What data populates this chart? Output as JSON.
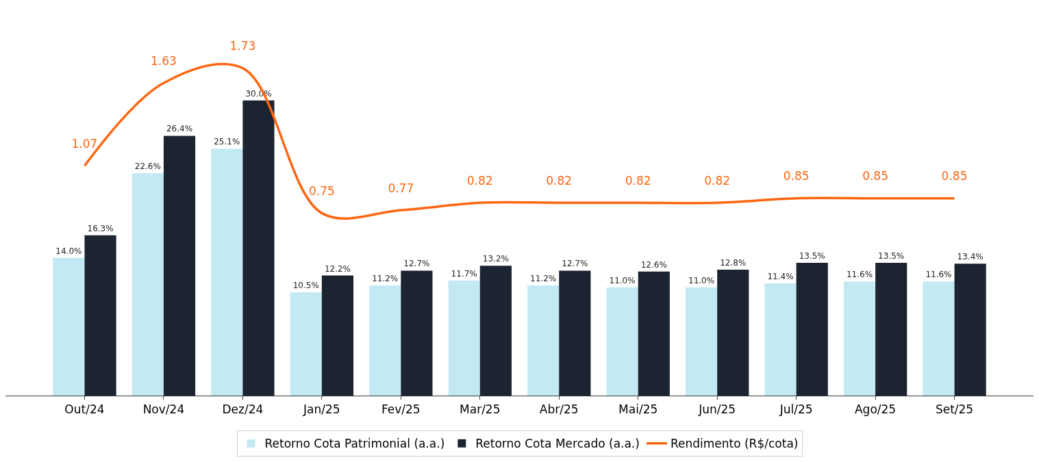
{
  "chart_data": {
    "type": "bar",
    "categories": [
      "Out/24",
      "Nov/24",
      "Dez/24",
      "Jan/25",
      "Fev/25",
      "Mar/25",
      "Abr/25",
      "Mai/25",
      "Jun/25",
      "Jul/25",
      "Ago/25",
      "Set/25"
    ],
    "series": [
      {
        "name": "Retorno Cota Patrimonial (a.a.)",
        "color": "#c3eaf4",
        "values": [
          14.0,
          22.6,
          25.1,
          10.5,
          11.2,
          11.7,
          11.2,
          11.0,
          11.0,
          11.4,
          11.6,
          11.6
        ],
        "value_labels": [
          "14.0%",
          "22.6%",
          "25.1%",
          "10.5%",
          "11.2%",
          "11.7%",
          "11.2%",
          "11.0%",
          "11.0%",
          "11.4%",
          "11.6%",
          "11.6%"
        ]
      },
      {
        "name": "Retorno Cota Mercado (a.a.)",
        "color": "#1b2430",
        "values": [
          16.3,
          26.4,
          30.0,
          12.2,
          12.7,
          13.2,
          12.7,
          12.6,
          12.8,
          13.5,
          13.5,
          13.4
        ],
        "value_labels": [
          "16.3%",
          "26.4%",
          "30.0%",
          "12.2%",
          "12.7%",
          "13.2%",
          "12.7%",
          "12.6%",
          "12.8%",
          "13.5%",
          "13.5%",
          "13.4%"
        ]
      },
      {
        "name": "Rendimento (R$/cota)",
        "type": "line",
        "axis": "y2",
        "color": "#ff6611",
        "values": [
          1.07,
          1.63,
          1.73,
          0.75,
          0.77,
          0.82,
          0.82,
          0.82,
          0.82,
          0.85,
          0.85,
          0.85
        ],
        "value_labels": [
          "1.07",
          "1.63",
          "1.73",
          "0.75",
          "0.77",
          "0.82",
          "0.82",
          "0.82",
          "0.82",
          "0.85",
          "0.85",
          "0.85"
        ]
      }
    ],
    "legend": "bottom",
    "tick_labels": "x"
  }
}
